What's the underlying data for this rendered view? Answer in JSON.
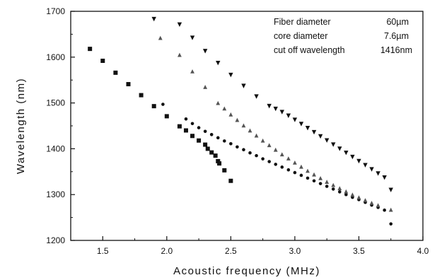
{
  "chart_data": {
    "type": "scatter",
    "xlabel": "Acoustic frequency (MHz)",
    "ylabel": "Wavelength (nm)",
    "xlim": [
      1.25,
      4.0
    ],
    "ylim": [
      1200,
      1700
    ],
    "xticks": [
      "1.5",
      "2.0",
      "2.5",
      "3.0",
      "3.5",
      "4.0"
    ],
    "yticks": [
      "1200",
      "1300",
      "1400",
      "1500",
      "1600",
      "1700"
    ],
    "grid": false,
    "annotations": [
      {
        "label": "Fiber diameter",
        "value": "60µm"
      },
      {
        "label": "core diameter",
        "value": "7.6µm"
      },
      {
        "label": "cut off wavelength",
        "value": "1416nm"
      }
    ],
    "series": [
      {
        "marker": "square",
        "points": [
          [
            1.4,
            1618
          ],
          [
            1.5,
            1592
          ],
          [
            1.6,
            1566
          ],
          [
            1.7,
            1541
          ],
          [
            1.8,
            1517
          ],
          [
            1.9,
            1493
          ],
          [
            2.0,
            1471
          ],
          [
            2.1,
            1449
          ],
          [
            2.15,
            1440
          ],
          [
            2.2,
            1428
          ],
          [
            2.25,
            1418
          ],
          [
            2.3,
            1409
          ],
          [
            2.32,
            1400
          ],
          [
            2.35,
            1392
          ],
          [
            2.38,
            1385
          ],
          [
            2.4,
            1373
          ],
          [
            2.41,
            1368
          ],
          [
            2.45,
            1353
          ],
          [
            2.5,
            1330
          ]
        ]
      },
      {
        "marker": "circle",
        "points": [
          [
            1.97,
            1497
          ],
          [
            2.15,
            1465
          ],
          [
            2.2,
            1455
          ],
          [
            2.25,
            1446
          ],
          [
            2.3,
            1438
          ],
          [
            2.35,
            1431
          ],
          [
            2.4,
            1424
          ],
          [
            2.45,
            1417
          ],
          [
            2.5,
            1411
          ],
          [
            2.55,
            1404
          ],
          [
            2.6,
            1398
          ],
          [
            2.65,
            1391
          ],
          [
            2.7,
            1385
          ],
          [
            2.75,
            1378
          ],
          [
            2.8,
            1372
          ],
          [
            2.85,
            1366
          ],
          [
            2.9,
            1360
          ],
          [
            2.95,
            1354
          ],
          [
            3.0,
            1348
          ],
          [
            3.05,
            1342
          ],
          [
            3.1,
            1336
          ],
          [
            3.15,
            1330
          ],
          [
            3.2,
            1324
          ],
          [
            3.25,
            1318
          ],
          [
            3.3,
            1312
          ],
          [
            3.35,
            1306
          ],
          [
            3.4,
            1300
          ],
          [
            3.45,
            1294
          ],
          [
            3.5,
            1289
          ],
          [
            3.55,
            1283
          ],
          [
            3.6,
            1277
          ],
          [
            3.65,
            1272
          ],
          [
            3.7,
            1266
          ],
          [
            3.75,
            1236
          ]
        ]
      },
      {
        "marker": "triangle-up",
        "points": [
          [
            1.95,
            1642
          ],
          [
            2.1,
            1605
          ],
          [
            2.2,
            1569
          ],
          [
            2.3,
            1535
          ],
          [
            2.4,
            1500
          ],
          [
            2.45,
            1488
          ],
          [
            2.5,
            1475
          ],
          [
            2.55,
            1463
          ],
          [
            2.6,
            1451
          ],
          [
            2.65,
            1440
          ],
          [
            2.7,
            1429
          ],
          [
            2.75,
            1418
          ],
          [
            2.8,
            1408
          ],
          [
            2.85,
            1398
          ],
          [
            2.9,
            1388
          ],
          [
            2.95,
            1379
          ],
          [
            3.0,
            1370
          ],
          [
            3.05,
            1361
          ],
          [
            3.1,
            1352
          ],
          [
            3.15,
            1344
          ],
          [
            3.2,
            1336
          ],
          [
            3.25,
            1328
          ],
          [
            3.3,
            1321
          ],
          [
            3.35,
            1314
          ],
          [
            3.4,
            1307
          ],
          [
            3.45,
            1300
          ],
          [
            3.5,
            1294
          ],
          [
            3.55,
            1288
          ],
          [
            3.6,
            1282
          ],
          [
            3.65,
            1277
          ],
          [
            3.75,
            1267
          ]
        ]
      },
      {
        "marker": "triangle-down",
        "points": [
          [
            1.9,
            1683
          ],
          [
            2.1,
            1671
          ],
          [
            2.2,
            1642
          ],
          [
            2.3,
            1613
          ],
          [
            2.4,
            1587
          ],
          [
            2.5,
            1561
          ],
          [
            2.6,
            1537
          ],
          [
            2.7,
            1514
          ],
          [
            2.8,
            1493
          ],
          [
            2.85,
            1487
          ],
          [
            2.9,
            1480
          ],
          [
            2.95,
            1472
          ],
          [
            3.0,
            1463
          ],
          [
            3.05,
            1454
          ],
          [
            3.1,
            1445
          ],
          [
            3.15,
            1436
          ],
          [
            3.2,
            1427
          ],
          [
            3.25,
            1418
          ],
          [
            3.3,
            1409
          ],
          [
            3.35,
            1400
          ],
          [
            3.4,
            1391
          ],
          [
            3.45,
            1382
          ],
          [
            3.5,
            1373
          ],
          [
            3.55,
            1364
          ],
          [
            3.6,
            1355
          ],
          [
            3.65,
            1346
          ],
          [
            3.7,
            1337
          ],
          [
            3.75,
            1310
          ]
        ]
      }
    ]
  }
}
